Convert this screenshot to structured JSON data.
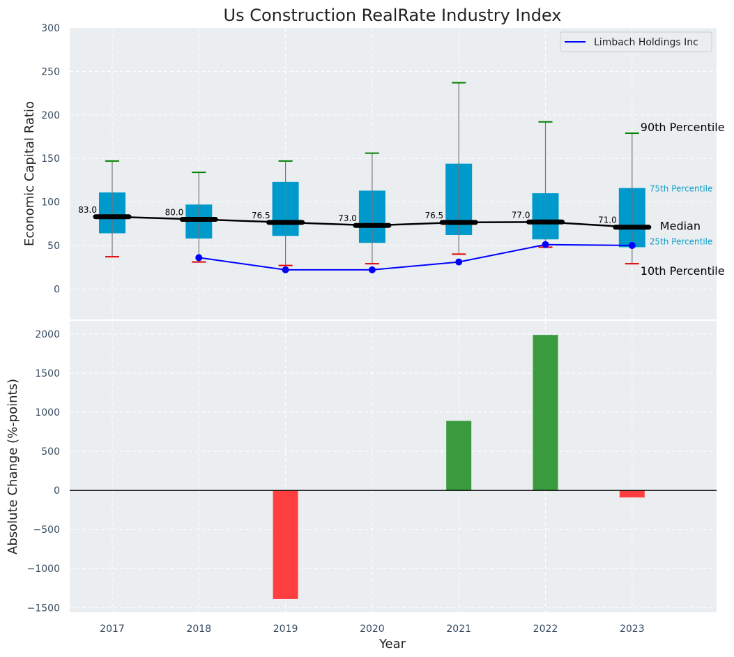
{
  "chart_data": [
    {
      "type": "box",
      "title": "Us Construction RealRate Industry Index",
      "xlabel": "",
      "ylabel": "Economic Capital Ratio",
      "ylim": [
        -35,
        300
      ],
      "yticks": [
        0,
        50,
        100,
        150,
        200,
        250,
        300
      ],
      "grid": true,
      "categories": [
        "2017",
        "2018",
        "2019",
        "2020",
        "2021",
        "2022",
        "2023"
      ],
      "percentiles": {
        "p10": [
          37,
          31,
          27,
          29,
          40,
          48,
          29
        ],
        "p25": [
          64,
          58,
          61,
          53,
          62,
          57,
          48
        ],
        "median": [
          83.0,
          80.0,
          76.5,
          73.0,
          76.5,
          77.0,
          71.0
        ],
        "p75": [
          111,
          97,
          123,
          113,
          144,
          110,
          116
        ],
        "p90": [
          147,
          134,
          147,
          156,
          237,
          192,
          179
        ]
      },
      "median_labels": [
        "83.0",
        "80.0",
        "76.5",
        "73.0",
        "76.5",
        "77.0",
        "71.0"
      ],
      "series": [
        {
          "name": "Limbach Holdings Inc",
          "color": "#0000ff",
          "values": [
            null,
            36,
            22,
            22,
            31,
            51,
            50
          ]
        }
      ],
      "legend": {
        "position": "top-right",
        "entries": [
          "Limbach Holdings Inc"
        ]
      },
      "annotations": {
        "p90": "90th Percentile",
        "p75": "75th Percentile",
        "median": "Median",
        "p25": "25th Percentile",
        "p10": "10th Percentile"
      },
      "colors": {
        "box": "#0099cc",
        "median": "#000000",
        "p90_cap": "#008000",
        "p10_cap": "#e00000",
        "background": "#eaeef0"
      }
    },
    {
      "type": "bar",
      "xlabel": "Year",
      "ylabel": "Absolute Change (%-points)",
      "ylim": [
        -1560,
        2170
      ],
      "yticks": [
        -1500,
        -1000,
        -500,
        0,
        500,
        1000,
        1500,
        2000
      ],
      "grid": true,
      "categories": [
        "2017",
        "2018",
        "2019",
        "2020",
        "2021",
        "2022",
        "2023"
      ],
      "values": [
        0,
        0,
        -1390,
        0,
        890,
        1990,
        -90
      ],
      "colors": {
        "positive": "#3a9b3e",
        "negative": "#ff3f3f",
        "zero_line": "#000000"
      }
    }
  ]
}
